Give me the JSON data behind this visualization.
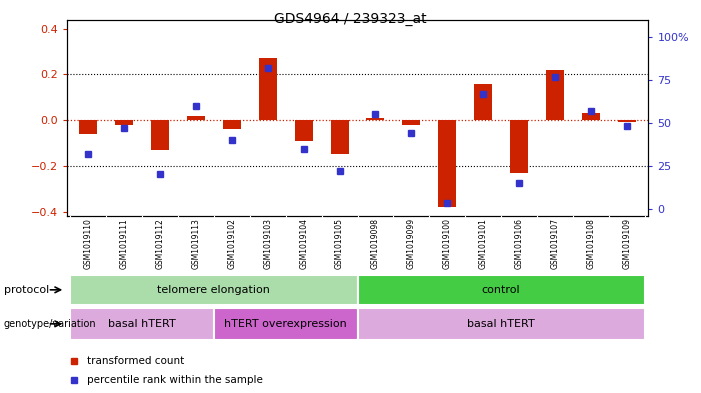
{
  "title": "GDS4964 / 239323_at",
  "samples": [
    "GSM1019110",
    "GSM1019111",
    "GSM1019112",
    "GSM1019113",
    "GSM1019102",
    "GSM1019103",
    "GSM1019104",
    "GSM1019105",
    "GSM1019098",
    "GSM1019099",
    "GSM1019100",
    "GSM1019101",
    "GSM1019106",
    "GSM1019107",
    "GSM1019108",
    "GSM1019109"
  ],
  "red_values": [
    -0.06,
    -0.02,
    -0.13,
    0.02,
    -0.04,
    0.27,
    -0.09,
    -0.15,
    0.01,
    -0.02,
    -0.38,
    0.16,
    -0.23,
    0.22,
    0.03,
    -0.01
  ],
  "blue_values": [
    32,
    47,
    20,
    60,
    40,
    82,
    35,
    22,
    55,
    44,
    3,
    67,
    15,
    77,
    57,
    48
  ],
  "ylim_left": [
    -0.42,
    0.44
  ],
  "ylim_right": [
    -4.41,
    110.25
  ],
  "yticks_left": [
    -0.4,
    -0.2,
    0.0,
    0.2,
    0.4
  ],
  "yticks_right": [
    0,
    25,
    50,
    75,
    100
  ],
  "ytick_labels_right": [
    "0",
    "25",
    "50",
    "75",
    "100%"
  ],
  "dotted_lines_black": [
    -0.2,
    0.2
  ],
  "dotted_line_red": 0.0,
  "protocol_groups": [
    {
      "label": "telomere elongation",
      "start": 0,
      "end": 7,
      "color": "#aaddaa"
    },
    {
      "label": "control",
      "start": 8,
      "end": 15,
      "color": "#44cc44"
    }
  ],
  "genotype_groups": [
    {
      "label": "basal hTERT",
      "start": 0,
      "end": 3,
      "color": "#ddaadd"
    },
    {
      "label": "hTERT overexpression",
      "start": 4,
      "end": 7,
      "color": "#cc66cc"
    },
    {
      "label": "basal hTERT",
      "start": 8,
      "end": 15,
      "color": "#ddaadd"
    }
  ],
  "red_color": "#CC2200",
  "blue_color": "#3333CC",
  "plot_bg": "#FFFFFF",
  "fig_bg": "#FFFFFF",
  "bar_width": 0.5,
  "grid_color": "#000000",
  "label_row_bg": "#C8C8C8",
  "label_row_divider": "#FFFFFF"
}
